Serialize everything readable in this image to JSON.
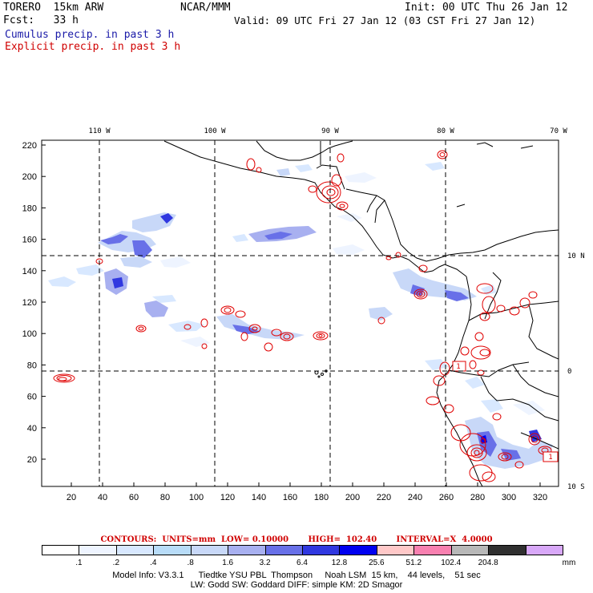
{
  "header": {
    "model": "TORERO  15km ARW",
    "org": "NCAR/MMM",
    "init": "Init: 00 UTC Thu 26 Jan 12",
    "fcst": "Fcst:   33 h",
    "valid": "Valid: 09 UTC Fri 27 Jan 12 (03 CST Fri 27 Jan 12)",
    "cumulus_label": "Cumulus precip. in past 3 h",
    "explicit_label": "Explicit precip. in past 3 h"
  },
  "colors": {
    "cumulus_text": "#1a1aa8",
    "explicit_text": "#d00000",
    "contour": "#e00000",
    "coastline": "#000000",
    "grid": "#000000"
  },
  "map": {
    "top_lon_labels": [
      "110 W",
      "100 W",
      "90 W",
      "80 W",
      "70 W"
    ],
    "right_lat_labels": [
      "10 N",
      "0",
      "10 S"
    ],
    "left_y_ticks": [
      "220",
      "200",
      "180",
      "160",
      "140",
      "120",
      "100",
      "80",
      "60",
      "40",
      "20"
    ],
    "bottom_x_ticks": [
      "20",
      "40",
      "60",
      "80",
      "100",
      "120",
      "140",
      "160",
      "180",
      "200",
      "220",
      "240",
      "260",
      "280",
      "300",
      "320"
    ],
    "box_labels": [
      "1",
      "1"
    ]
  },
  "colorbar": {
    "labels": [
      ".1",
      ".2",
      ".4",
      ".8",
      "1.6",
      "3.2",
      "6.4",
      "12.8",
      "25.6",
      "51.2",
      "102.4",
      "204.8"
    ],
    "unit": "mm",
    "colors": [
      "#ffffff",
      "#eef4ff",
      "#d8e8ff",
      "#b8dcf8",
      "#c8d8f8",
      "#a8b0f0",
      "#6870e8",
      "#3038e0",
      "#0000f0",
      "#ffc8c8",
      "#f880b0",
      "#b8b8b8",
      "#303030",
      "#d8a8f8"
    ]
  },
  "contours": {
    "text": "CONTOURS:  UNITS=mm  LOW= 0.10000       HIGH=  102.40       INTERVAL=X  4.0000"
  },
  "info": {
    "line1": "Model Info: V3.3.1      Tiedtke YSU PBL  Thompson     Noah LSM  15 km,    44 levels,    51 sec",
    "line2": "LW: Godd SW: Goddard DIFF: simple KM: 2D Smagor"
  }
}
